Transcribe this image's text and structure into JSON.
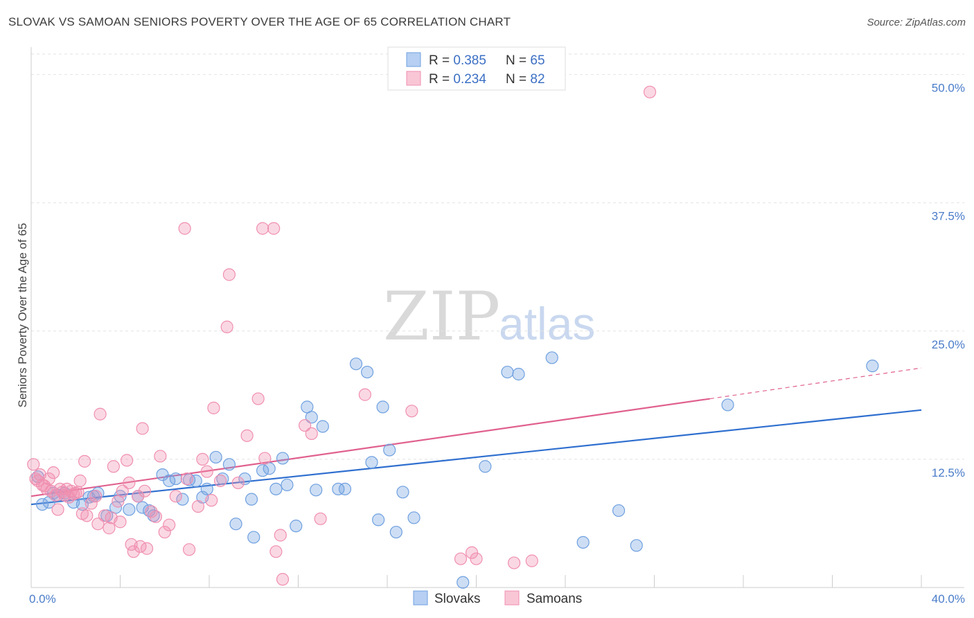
{
  "title": "SLOVAK VS SAMOAN SENIORS POVERTY OVER THE AGE OF 65 CORRELATION CHART",
  "source": "Source: ZipAtlas.com",
  "watermark": {
    "zip": "ZIP",
    "atlas": "atlas"
  },
  "legend": {
    "rows": [
      {
        "r_label": "R = ",
        "r_value": "0.385",
        "n_label": "N = ",
        "n_value": "65",
        "color": "#6fa0e0"
      },
      {
        "r_label": "R = ",
        "r_value": "0.234",
        "n_label": "N = ",
        "n_value": "82",
        "color": "#f08fb0"
      }
    ]
  },
  "chart_data": {
    "type": "scatter",
    "title": "SLOVAK VS SAMOAN SENIORS POVERTY OVER THE AGE OF 65 CORRELATION CHART",
    "xlabel": "",
    "ylabel": "Seniors Poverty Over the Age of 65",
    "xlim": [
      0,
      40
    ],
    "ylim": [
      0,
      52
    ],
    "x_tick_labels": [
      "0.0%",
      "40.0%"
    ],
    "y_ticks": [
      12.5,
      25.0,
      37.5,
      50.0
    ],
    "y_tick_labels": [
      "12.5%",
      "25.0%",
      "37.5%",
      "50.0%"
    ],
    "grid": "horizontal dashed",
    "legend_position": "top-center",
    "series": [
      {
        "name": "Slovaks",
        "color": "#6fa0e0",
        "line_color": "#2f6fcf",
        "trend": {
          "x": [
            0,
            40
          ],
          "y": [
            8.1,
            17.3
          ]
        },
        "points": [
          [
            0.3,
            10.8
          ],
          [
            0.5,
            8.1
          ],
          [
            0.8,
            8.3
          ],
          [
            1.0,
            9.2
          ],
          [
            1.2,
            9.0
          ],
          [
            1.5,
            9.2
          ],
          [
            1.9,
            8.3
          ],
          [
            2.3,
            8.1
          ],
          [
            2.6,
            8.8
          ],
          [
            2.8,
            8.9
          ],
          [
            3.0,
            9.2
          ],
          [
            3.4,
            7.0
          ],
          [
            3.8,
            7.8
          ],
          [
            4.0,
            8.9
          ],
          [
            4.4,
            7.6
          ],
          [
            4.8,
            8.9
          ],
          [
            5.0,
            7.8
          ],
          [
            5.3,
            7.5
          ],
          [
            5.5,
            7.0
          ],
          [
            5.9,
            11.0
          ],
          [
            6.2,
            10.4
          ],
          [
            6.5,
            10.6
          ],
          [
            6.8,
            8.6
          ],
          [
            7.1,
            10.5
          ],
          [
            7.4,
            10.4
          ],
          [
            7.7,
            8.8
          ],
          [
            7.9,
            9.6
          ],
          [
            8.3,
            12.7
          ],
          [
            8.6,
            10.6
          ],
          [
            8.9,
            12.0
          ],
          [
            9.2,
            6.2
          ],
          [
            9.6,
            10.6
          ],
          [
            9.9,
            8.6
          ],
          [
            10.0,
            4.9
          ],
          [
            10.4,
            11.4
          ],
          [
            10.7,
            11.6
          ],
          [
            11.0,
            9.6
          ],
          [
            11.3,
            12.6
          ],
          [
            11.5,
            10.0
          ],
          [
            11.9,
            6.0
          ],
          [
            12.4,
            17.6
          ],
          [
            12.6,
            16.6
          ],
          [
            12.8,
            9.5
          ],
          [
            13.1,
            15.7
          ],
          [
            13.8,
            9.6
          ],
          [
            14.1,
            9.6
          ],
          [
            14.6,
            21.8
          ],
          [
            15.1,
            21.0
          ],
          [
            15.3,
            12.2
          ],
          [
            15.6,
            6.6
          ],
          [
            15.8,
            17.6
          ],
          [
            16.1,
            13.4
          ],
          [
            16.4,
            5.4
          ],
          [
            16.7,
            9.3
          ],
          [
            17.2,
            6.8
          ],
          [
            19.4,
            0.5
          ],
          [
            20.4,
            11.8
          ],
          [
            21.4,
            21.0
          ],
          [
            21.9,
            20.8
          ],
          [
            23.4,
            22.4
          ],
          [
            24.8,
            4.4
          ],
          [
            26.4,
            7.5
          ],
          [
            27.2,
            4.1
          ],
          [
            31.3,
            17.8
          ],
          [
            37.8,
            21.6
          ]
        ]
      },
      {
        "name": "Samoans",
        "color": "#f08fb0",
        "line_color": "#e0608e",
        "trend": {
          "x": [
            0,
            30.5
          ],
          "y": [
            8.9,
            18.4
          ]
        },
        "trend_dashed": {
          "x": [
            30.5,
            40
          ],
          "y": [
            18.4,
            21.4
          ]
        },
        "points": [
          [
            0.1,
            12.0
          ],
          [
            0.3,
            10.4
          ],
          [
            0.4,
            11.0
          ],
          [
            0.5,
            10.0
          ],
          [
            0.6,
            9.9
          ],
          [
            0.7,
            9.6
          ],
          [
            0.8,
            10.6
          ],
          [
            0.9,
            9.4
          ],
          [
            1.0,
            11.2
          ],
          [
            1.1,
            9.0
          ],
          [
            1.2,
            7.6
          ],
          [
            1.3,
            9.6
          ],
          [
            1.4,
            9.3
          ],
          [
            1.5,
            9.0
          ],
          [
            1.6,
            9.6
          ],
          [
            1.7,
            8.8
          ],
          [
            1.8,
            9.4
          ],
          [
            1.9,
            9.1
          ],
          [
            2.0,
            9.2
          ],
          [
            2.1,
            9.3
          ],
          [
            2.2,
            10.4
          ],
          [
            2.3,
            7.2
          ],
          [
            2.4,
            12.3
          ],
          [
            2.5,
            7.0
          ],
          [
            2.7,
            8.2
          ],
          [
            2.9,
            8.9
          ],
          [
            3.0,
            6.2
          ],
          [
            3.1,
            16.9
          ],
          [
            3.3,
            7.0
          ],
          [
            3.5,
            5.8
          ],
          [
            3.6,
            6.8
          ],
          [
            3.7,
            11.8
          ],
          [
            3.9,
            8.4
          ],
          [
            4.0,
            6.4
          ],
          [
            4.1,
            9.4
          ],
          [
            4.3,
            12.4
          ],
          [
            4.4,
            10.2
          ],
          [
            4.5,
            4.2
          ],
          [
            4.6,
            3.5
          ],
          [
            4.8,
            8.9
          ],
          [
            4.9,
            4.0
          ],
          [
            5.0,
            15.5
          ],
          [
            5.1,
            9.4
          ],
          [
            5.2,
            3.8
          ],
          [
            5.4,
            7.4
          ],
          [
            5.6,
            6.9
          ],
          [
            5.8,
            12.8
          ],
          [
            6.0,
            5.4
          ],
          [
            6.2,
            6.1
          ],
          [
            6.5,
            8.9
          ],
          [
            6.9,
            35.0
          ],
          [
            7.0,
            10.6
          ],
          [
            7.1,
            3.7
          ],
          [
            7.5,
            7.9
          ],
          [
            7.7,
            12.5
          ],
          [
            7.9,
            11.3
          ],
          [
            8.1,
            8.5
          ],
          [
            8.2,
            17.5
          ],
          [
            8.5,
            10.4
          ],
          [
            8.8,
            25.4
          ],
          [
            8.9,
            30.5
          ],
          [
            9.3,
            10.2
          ],
          [
            9.7,
            14.8
          ],
          [
            10.2,
            18.4
          ],
          [
            10.4,
            35.0
          ],
          [
            10.5,
            12.6
          ],
          [
            10.9,
            35.0
          ],
          [
            11.0,
            3.5
          ],
          [
            11.2,
            5.1
          ],
          [
            11.3,
            0.8
          ],
          [
            12.3,
            15.8
          ],
          [
            12.6,
            15.0
          ],
          [
            13.0,
            6.7
          ],
          [
            15.0,
            18.8
          ],
          [
            17.1,
            17.2
          ],
          [
            19.3,
            2.8
          ],
          [
            19.8,
            3.4
          ],
          [
            20.0,
            2.8
          ],
          [
            21.7,
            2.4
          ],
          [
            22.5,
            2.6
          ],
          [
            27.8,
            48.3
          ],
          [
            0.2,
            10.6
          ]
        ]
      }
    ]
  },
  "bottom_legend": [
    {
      "label": "Slovaks",
      "color": "#6fa0e0"
    },
    {
      "label": "Samoans",
      "color": "#f08fb0"
    }
  ]
}
